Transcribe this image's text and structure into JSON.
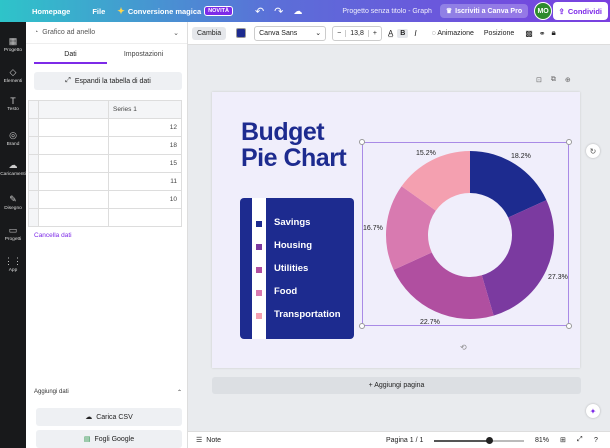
{
  "topbar": {
    "home": "Homepage",
    "file": "File",
    "magic": "Conversione magica",
    "badge": "NOVITÀ",
    "doc_title": "Progetto senza titolo - Graph",
    "pro": "Iscriviti a Canva Pro",
    "avatar": "MO",
    "share": "Condividi"
  },
  "rail": [
    {
      "icon": "▦",
      "label": "Progetto"
    },
    {
      "icon": "◇",
      "label": "Elementi"
    },
    {
      "icon": "T",
      "label": "Testo"
    },
    {
      "icon": "◎",
      "label": "Brand"
    },
    {
      "icon": "☁",
      "label": "Caricamenti"
    },
    {
      "icon": "✎",
      "label": "Disegno"
    },
    {
      "icon": "▭",
      "label": "Progetti"
    },
    {
      "icon": "⋮⋮",
      "label": "App"
    }
  ],
  "panel": {
    "chart_type": "Grafico ad anello",
    "tab_data": "Dati",
    "tab_settings": "Impostazioni",
    "expand": "Espandi la tabella di dati",
    "header_series": "Series 1",
    "rows": [
      "12",
      "18",
      "15",
      "11",
      "10"
    ],
    "clear": "Cancella dati",
    "add_data": "Aggiungi dati",
    "csv": "Carica CSV",
    "sheets": "Fogli Google"
  },
  "toolbar": {
    "change": "Cambia",
    "font": "Canva Sans",
    "size": "13,8",
    "animation": "Animazione",
    "position": "Posizione",
    "swatch_color": "#1d2b8f"
  },
  "canvas": {
    "title_line1": "Budget",
    "title_line2": "Pie Chart",
    "add_page": "+ Aggiungi pagina"
  },
  "chart_data": {
    "type": "pie",
    "categories": [
      "Savings",
      "Housing",
      "Utilities",
      "Food",
      "Transportation"
    ],
    "values": [
      12,
      18,
      15,
      11,
      10
    ],
    "percent_labels": [
      "18.2%",
      "27.3%",
      "22.7%",
      "16.7%",
      "15.2%"
    ],
    "colors": [
      "#1d2b8f",
      "#7b3aa0",
      "#b04fa0",
      "#d87ab0",
      "#f4a0b0"
    ],
    "donut": true
  },
  "footer": {
    "notes": "Note",
    "page": "Pagina 1 / 1",
    "zoom": "81%",
    "zoom_level": 0.62
  }
}
